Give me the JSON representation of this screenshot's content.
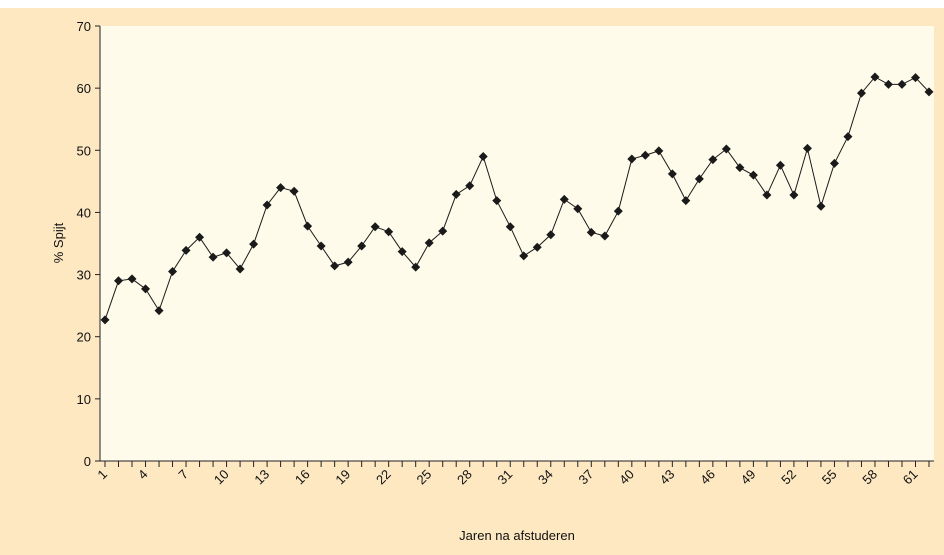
{
  "chart_data": {
    "type": "line",
    "x_label": "Jaren na afstuderen",
    "y_label": "% Spijt",
    "categories": [
      1,
      null,
      null,
      4,
      null,
      null,
      7,
      null,
      null,
      10,
      null,
      null,
      13,
      null,
      null,
      16,
      null,
      null,
      19,
      null,
      null,
      22,
      null,
      null,
      25,
      null,
      null,
      28,
      null,
      null,
      31,
      null,
      null,
      34,
      null,
      null,
      37,
      null,
      null,
      40,
      null,
      null,
      43,
      null,
      null,
      46,
      null,
      null,
      49,
      null,
      null,
      52,
      null,
      null,
      55,
      null,
      null,
      58,
      null,
      null,
      61,
      null
    ],
    "series": [
      {
        "name": "% Spijt",
        "color": "#1a1a1a",
        "values": [
          22.7,
          29,
          29.3,
          27.7,
          24.2,
          30.5,
          33.9,
          36,
          32.8,
          33.5,
          30.9,
          34.9,
          41.2,
          44,
          43.4,
          37.8,
          34.6,
          31.4,
          32,
          34.6,
          37.7,
          36.9,
          33.7,
          31.2,
          35.1,
          37,
          42.9,
          44.3,
          49,
          41.9,
          37.7,
          33,
          34.4,
          36.4,
          42.1,
          40.6,
          36.8,
          36.2,
          40.2,
          48.6,
          49.2,
          49.9,
          46.2,
          41.9,
          45.4,
          48.5,
          50.2,
          47.2,
          46,
          42.8,
          47.6,
          42.8,
          50.3,
          41,
          47.9,
          52.2,
          59.2,
          61.8,
          60.6,
          60.6,
          61.7,
          59.4
        ]
      }
    ],
    "ylim": [
      0,
      70
    ],
    "yticks": [
      0,
      10,
      20,
      30,
      40,
      50,
      60,
      70
    ],
    "grid": false
  }
}
